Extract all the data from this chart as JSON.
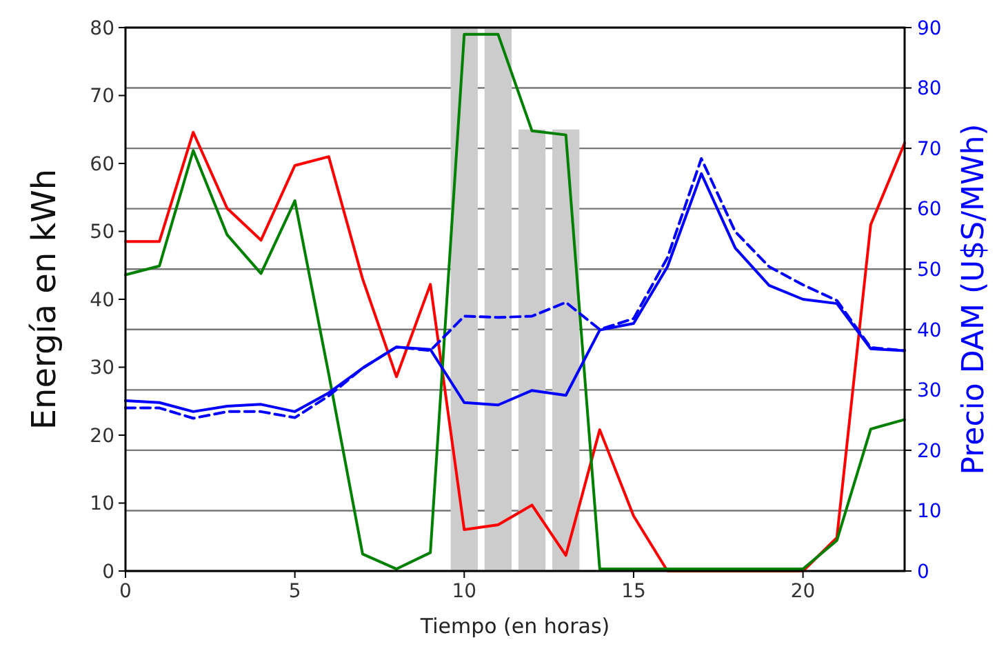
{
  "chart_data": {
    "type": "line",
    "xlabel": "Tiempo (en horas)",
    "ylabel": "Energía en kWh",
    "y2label": "Precio DAM (U$S/MWh)",
    "x": [
      0,
      1,
      2,
      3,
      4,
      5,
      6,
      7,
      8,
      9,
      10,
      11,
      12,
      13,
      14,
      15,
      16,
      17,
      18,
      19,
      20,
      21,
      22,
      23
    ],
    "xlim": [
      0,
      23
    ],
    "xticks": [
      0,
      5,
      10,
      15,
      20
    ],
    "ylim": [
      0,
      80
    ],
    "yticks": [
      0,
      10,
      20,
      30,
      40,
      50,
      60,
      70,
      80
    ],
    "y2lim": [
      0,
      90
    ],
    "y2ticks": [
      0,
      10,
      20,
      30,
      40,
      50,
      60,
      70,
      80,
      90
    ],
    "grid": "y2",
    "line_style": "solid",
    "series": [
      {
        "type": "bar",
        "color": "#cccccc",
        "x": [
          10,
          11,
          12,
          13
        ],
        "values": [
          80,
          80,
          65,
          65
        ]
      },
      {
        "color": "#ff0000",
        "values": [
          48.5,
          48.5,
          64.6,
          53.4,
          48.7,
          59.7,
          61,
          43,
          28.6,
          42.2,
          6.1,
          6.8,
          9.7,
          2.3,
          20.8,
          8.1,
          0,
          0,
          0,
          0,
          0,
          4.9,
          51,
          63
        ]
      },
      {
        "color": "#008000",
        "values": [
          43.6,
          44.9,
          61.9,
          49.5,
          43.8,
          54.5,
          29,
          2.5,
          0.3,
          2.7,
          79,
          79,
          64.8,
          64.2,
          0.3,
          0.3,
          0.3,
          0.3,
          0.3,
          0.3,
          0.3,
          4.5,
          20.9,
          22.3
        ]
      },
      {
        "color": "#0000ff",
        "axis": "y2",
        "values": [
          28.2,
          27.9,
          26.4,
          27.3,
          27.6,
          26.4,
          29.5,
          33.6,
          37.1,
          36.7,
          27.9,
          27.5,
          29.9,
          29.1,
          39.9,
          41,
          50.4,
          65.8,
          53.5,
          47.3,
          45,
          44.3,
          36.8,
          36.5
        ]
      },
      {
        "color": "#0000ff",
        "axis": "y2",
        "line_style": "dashed",
        "values": [
          27,
          27,
          25.3,
          26.4,
          26.4,
          25.4,
          29,
          33.6,
          37.1,
          36.5,
          42.2,
          42,
          42.2,
          44.5,
          40,
          41.8,
          51.9,
          68.3,
          56.2,
          50.4,
          47.4,
          44.8,
          37,
          36.5
        ]
      }
    ]
  }
}
